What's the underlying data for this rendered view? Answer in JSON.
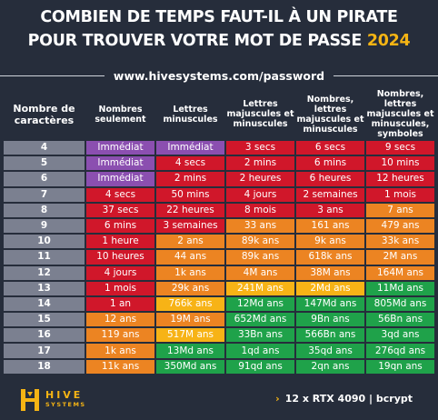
{
  "title_line1": "COMBIEN DE TEMPS FAUT-IL À UN PIRATE",
  "title_line2": "POUR TROUVER VOTRE MOT DE PASSE",
  "title_year": "2024",
  "url": "www.hivesystems.com/password",
  "logo": {
    "top": "HIVE",
    "bottom": "SYSTEMS"
  },
  "spec": {
    "arrow": "›",
    "hardware": "12 x RTX 4090",
    "separator": "|",
    "algorithm": "bcrypt"
  },
  "colors": {
    "purple": "#8b4fb0",
    "red": "#d0172a",
    "orange": "#ec8422",
    "yellow": "#f7b316",
    "green": "#1fa24a",
    "label": "#7b8090",
    "background": "#262d3b"
  },
  "chart_data": {
    "type": "table",
    "columns": [
      "Nombre de caractères",
      "Nombres seulement",
      "Lettres minuscules",
      "Lettres majuscules et minuscules",
      "Nombres, lettres majuscules et minuscules",
      "Nombres, lettres majuscules et minuscules, symboles"
    ],
    "rows": [
      {
        "n": "4",
        "cells": [
          "Immédiat",
          "Immédiat",
          "3 secs",
          "6 secs",
          "9 secs"
        ],
        "colors": [
          "purple",
          "purple",
          "red",
          "red",
          "red"
        ]
      },
      {
        "n": "5",
        "cells": [
          "Immédiat",
          "4 secs",
          "2 mins",
          "6 mins",
          "10 mins"
        ],
        "colors": [
          "purple",
          "red",
          "red",
          "red",
          "red"
        ]
      },
      {
        "n": "6",
        "cells": [
          "Immédiat",
          "2 mins",
          "2 heures",
          "6 heures",
          "12 heures"
        ],
        "colors": [
          "purple",
          "red",
          "red",
          "red",
          "red"
        ]
      },
      {
        "n": "7",
        "cells": [
          "4 secs",
          "50 mins",
          "4 jours",
          "2 semaines",
          "1 mois"
        ],
        "colors": [
          "red",
          "red",
          "red",
          "red",
          "red"
        ]
      },
      {
        "n": "8",
        "cells": [
          "37 secs",
          "22 heures",
          "8 mois",
          "3 ans",
          "7 ans"
        ],
        "colors": [
          "red",
          "red",
          "red",
          "red",
          "orange"
        ]
      },
      {
        "n": "9",
        "cells": [
          "6 mins",
          "3 semaines",
          "33 ans",
          "161 ans",
          "479 ans"
        ],
        "colors": [
          "red",
          "red",
          "orange",
          "orange",
          "orange"
        ]
      },
      {
        "n": "10",
        "cells": [
          "1 heure",
          "2 ans",
          "89k ans",
          "9k ans",
          "33k ans"
        ],
        "colors": [
          "red",
          "orange",
          "orange",
          "orange",
          "orange"
        ]
      },
      {
        "n": "11",
        "cells": [
          "10 heures",
          "44 ans",
          "89k ans",
          "618k ans",
          "2M ans"
        ],
        "colors": [
          "red",
          "orange",
          "orange",
          "orange",
          "orange"
        ]
      },
      {
        "n": "12",
        "cells": [
          "4 jours",
          "1k ans",
          "4M ans",
          "38M ans",
          "164M ans"
        ],
        "colors": [
          "red",
          "orange",
          "orange",
          "orange",
          "orange"
        ]
      },
      {
        "n": "13",
        "cells": [
          "1 mois",
          "29k ans",
          "241M ans",
          "2Md ans",
          "11Md ans"
        ],
        "colors": [
          "red",
          "orange",
          "yellow",
          "yellow",
          "green"
        ]
      },
      {
        "n": "14",
        "cells": [
          "1 an",
          "766k ans",
          "12Md ans",
          "147Md ans",
          "805Md ans"
        ],
        "colors": [
          "red",
          "yellow",
          "green",
          "green",
          "green"
        ]
      },
      {
        "n": "15",
        "cells": [
          "12 ans",
          "19M ans",
          "652Md ans",
          "9Bn ans",
          "56Bn ans"
        ],
        "colors": [
          "orange",
          "orange",
          "green",
          "green",
          "green"
        ]
      },
      {
        "n": "16",
        "cells": [
          "119 ans",
          "517M ans",
          "33Bn ans",
          "566Bn ans",
          "3qd ans"
        ],
        "colors": [
          "orange",
          "yellow",
          "green",
          "green",
          "green"
        ]
      },
      {
        "n": "17",
        "cells": [
          "1k ans",
          "13Md ans",
          "1qd ans",
          "35qd ans",
          "276qd ans"
        ],
        "colors": [
          "orange",
          "green",
          "green",
          "green",
          "green"
        ]
      },
      {
        "n": "18",
        "cells": [
          "11k ans",
          "350Md ans",
          "91qd ans",
          "2qn ans",
          "19qn ans"
        ],
        "colors": [
          "orange",
          "green",
          "green",
          "green",
          "green"
        ]
      }
    ]
  }
}
